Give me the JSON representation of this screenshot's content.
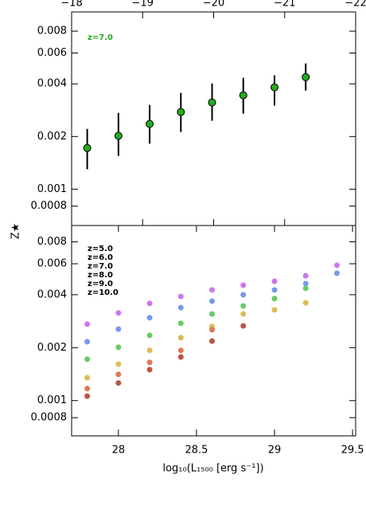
{
  "chart_data": [
    {
      "type": "errorbar",
      "ylabel": "Z★",
      "annotation": "z=7.0",
      "annotation_color": "#22aa22",
      "log_y": true,
      "ylim": [
        0.00062,
        0.0103
      ],
      "yticks": [
        0.0008,
        0.001,
        0.002,
        0.004,
        0.006,
        0.008
      ],
      "xlim": [
        27.7,
        29.52
      ],
      "x2lim": [
        -18,
        -22
      ],
      "x2ticks": [
        {
          "value": -18,
          "label": "−18"
        },
        {
          "value": -19,
          "label": "−19"
        },
        {
          "value": -20,
          "label": "−20"
        },
        {
          "value": -21,
          "label": "−21"
        },
        {
          "value": -22,
          "label": "−22"
        }
      ],
      "x": [
        27.8,
        28.0,
        28.2,
        28.4,
        28.6,
        28.8,
        29.0,
        29.2
      ],
      "series": [
        {
          "color": "#22aa22",
          "values": [
            0.00172,
            0.00202,
            0.00236,
            0.00276,
            0.00313,
            0.00344,
            0.00382,
            0.00437
          ],
          "lower": [
            0.0013,
            0.00155,
            0.00182,
            0.00212,
            0.00246,
            0.0027,
            0.003,
            0.00366
          ],
          "upper": [
            0.00221,
            0.00273,
            0.00303,
            0.00355,
            0.00402,
            0.00433,
            0.00447,
            0.00523
          ]
        }
      ]
    },
    {
      "type": "scatter",
      "xlabel": "log₁₀(L₁₅₀₀ [erg s⁻¹])",
      "log_y": true,
      "ylim": [
        0.00063,
        0.0099
      ],
      "yticks": [
        0.0008,
        0.001,
        0.002,
        0.004,
        0.006,
        0.008
      ],
      "xlim": [
        27.7,
        29.52
      ],
      "xticks": [
        28,
        28.5,
        29,
        29.5
      ],
      "x": [
        27.8,
        28.0,
        28.2,
        28.4,
        28.6,
        28.8,
        29.0,
        29.2,
        29.4
      ],
      "series": [
        {
          "name": "z=5.0",
          "color": "#cc77ee",
          "values": [
            0.00272,
            0.00315,
            0.00357,
            0.00391,
            0.00426,
            0.00453,
            0.00477,
            0.00513,
            0.00588
          ]
        },
        {
          "name": "z=6.0",
          "color": "#7799ee",
          "values": [
            0.00216,
            0.00255,
            0.00296,
            0.00338,
            0.00368,
            0.004,
            0.00426,
            0.00463,
            0.0053
          ]
        },
        {
          "name": "z=7.0",
          "color": "#66cc66",
          "values": [
            0.00172,
            0.00201,
            0.00235,
            0.00275,
            0.00311,
            0.00345,
            0.0038,
            0.00435,
            null
          ]
        },
        {
          "name": "z=8.0",
          "color": "#ddbb55",
          "values": [
            0.00135,
            0.00161,
            0.00193,
            0.00228,
            0.00264,
            0.00311,
            0.00328,
            0.0036,
            null
          ]
        },
        {
          "name": "z=9.0",
          "color": "#dd7755",
          "values": [
            0.00117,
            0.00141,
            0.00165,
            0.00193,
            0.00253,
            null,
            null,
            null,
            null
          ]
        },
        {
          "name": "z=10.0",
          "color": "#bb5544",
          "values": [
            0.00106,
            0.00126,
            0.0015,
            0.00177,
            0.00218,
            0.00266,
            null,
            null,
            null
          ]
        }
      ]
    }
  ]
}
